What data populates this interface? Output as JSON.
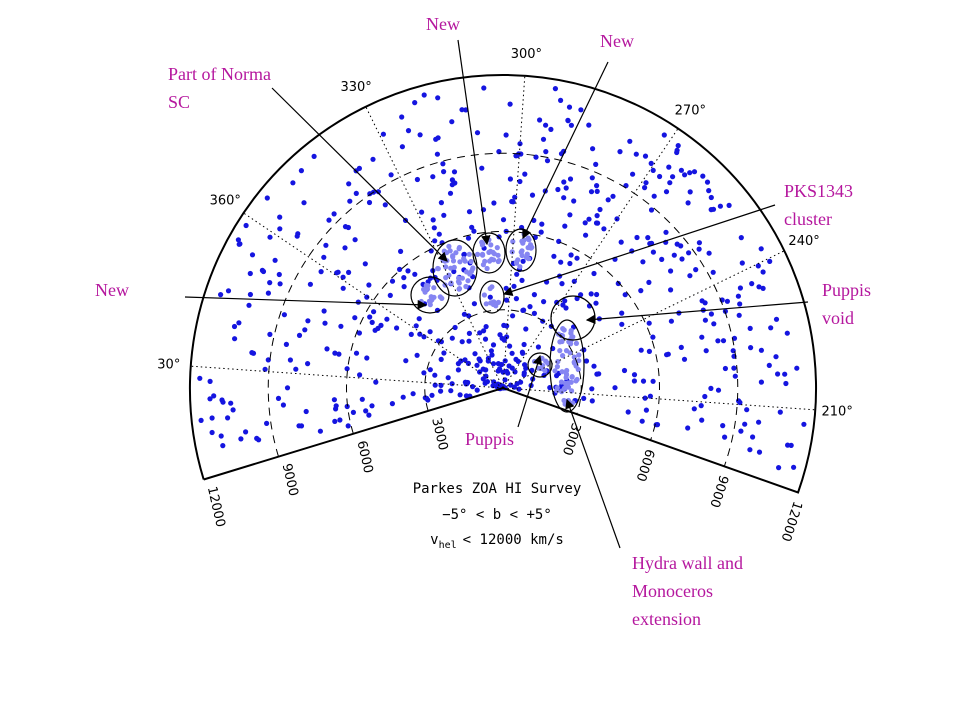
{
  "figure": {
    "longitude_labels": [
      "30°",
      "360°",
      "330°",
      "300°",
      "270°",
      "240°",
      "210°"
    ],
    "left_distance_labels": [
      "3000",
      "6000",
      "9000",
      "12000"
    ],
    "right_distance_labels": [
      "3000",
      "6000",
      "9000",
      "12000"
    ],
    "caption": {
      "title": "Parkes ZOA HI Survey",
      "latitude": "−5° < b < +5°",
      "velocity_symbol": "v",
      "velocity_subscript": "hel",
      "velocity_range": "< 12000 km/s"
    }
  },
  "annotations": [
    {
      "lines": [
        "New"
      ]
    },
    {
      "lines": [
        "New"
      ]
    },
    {
      "lines": [
        "Part of Norma",
        "SC"
      ]
    },
    {
      "lines": [
        "PKS1343",
        "cluster"
      ]
    },
    {
      "lines": [
        "New"
      ]
    },
    {
      "lines": [
        "Puppis",
        "void"
      ]
    },
    {
      "lines": [
        "Puppis"
      ]
    },
    {
      "lines": [
        "Hydra wall and",
        "Monoceros",
        "extension"
      ]
    }
  ]
}
